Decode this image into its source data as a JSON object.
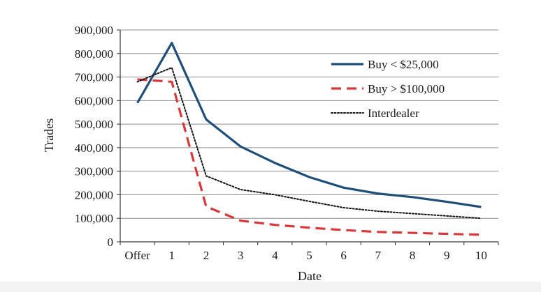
{
  "chart_data": {
    "type": "line",
    "title": "",
    "xlabel": "Date",
    "ylabel": "Trades",
    "categories": [
      "Offer",
      "1",
      "2",
      "3",
      "4",
      "5",
      "6",
      "7",
      "8",
      "9",
      "10"
    ],
    "ylim": [
      0,
      900000
    ],
    "yticks": [
      "0",
      "100,000",
      "200,000",
      "300,000",
      "400,000",
      "500,000",
      "600,000",
      "700,000",
      "800,000",
      "900,000"
    ],
    "ytick_values": [
      0,
      100000,
      200000,
      300000,
      400000,
      500000,
      600000,
      700000,
      800000,
      900000
    ],
    "grid": "horizontal",
    "legend_position": "top-right",
    "series": [
      {
        "name": "Buy < $25,000",
        "style": "solid",
        "color": "#1f4e79",
        "values": [
          590000,
          845000,
          520000,
          405000,
          335000,
          275000,
          230000,
          205000,
          190000,
          170000,
          148000
        ]
      },
      {
        "name": "Buy > $100,000",
        "style": "dashed",
        "color": "#d9383a",
        "values": [
          690000,
          680000,
          150000,
          90000,
          72000,
          60000,
          50000,
          42000,
          38000,
          34000,
          30000
        ]
      },
      {
        "name": "Interdealer",
        "style": "dotted",
        "color": "#111111",
        "values": [
          680000,
          740000,
          280000,
          222000,
          200000,
          172000,
          145000,
          130000,
          120000,
          110000,
          100000
        ]
      }
    ]
  }
}
